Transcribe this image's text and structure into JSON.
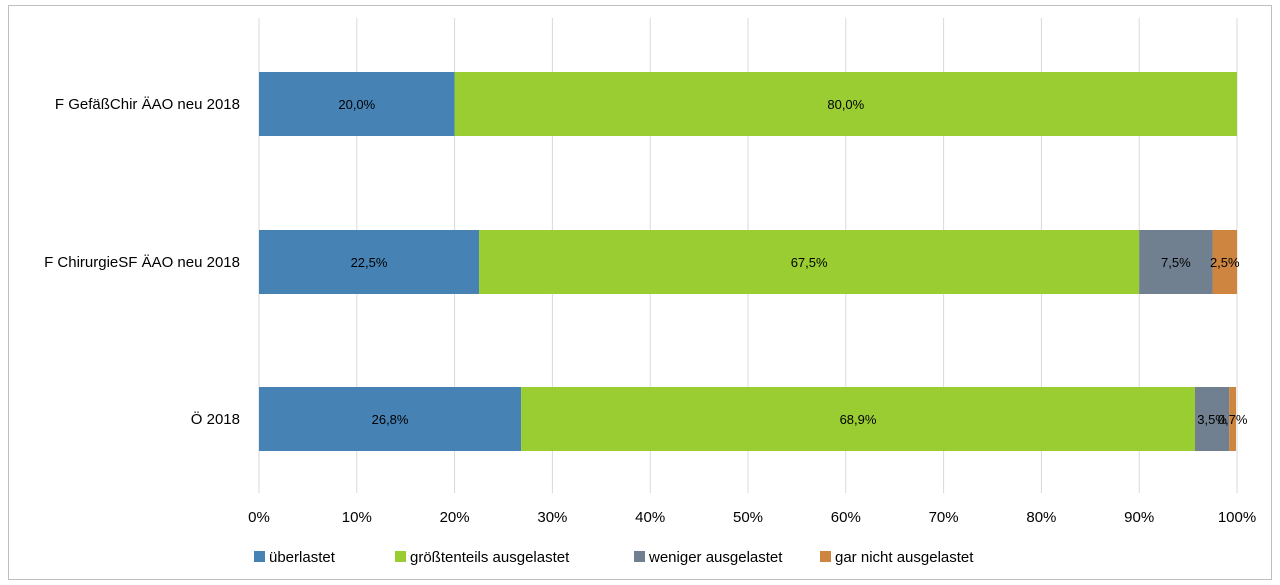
{
  "chart_data": {
    "type": "bar",
    "orientation": "horizontal",
    "stacked": "percent",
    "categories": [
      "F GefäßChir ÄAO neu 2018",
      "F ChirurgieSF ÄAO neu 2018",
      "Ö 2018"
    ],
    "series": [
      {
        "name": "überlastet",
        "color": "#4682b4",
        "values": [
          20.0,
          22.5,
          26.8
        ],
        "labels": [
          "20,0%",
          "22,5%",
          "26,8%"
        ]
      },
      {
        "name": "größtenteils ausgelastet",
        "color": "#9acd32",
        "values": [
          80.0,
          67.5,
          68.9
        ],
        "labels": [
          "80,0%",
          "67,5%",
          "68,9%"
        ]
      },
      {
        "name": "weniger ausgelastet",
        "color": "#708090",
        "values": [
          0.0,
          7.5,
          3.5
        ],
        "labels": [
          "",
          "7,5%",
          "3,5%"
        ]
      },
      {
        "name": "gar nicht ausgelastet",
        "color": "#cd853f",
        "values": [
          0.0,
          2.5,
          0.7
        ],
        "labels": [
          "",
          "2,5%",
          "0,7%"
        ]
      }
    ],
    "xlim": [
      0,
      100
    ],
    "x_ticks": [
      "0%",
      "10%",
      "20%",
      "30%",
      "40%",
      "50%",
      "60%",
      "70%",
      "80%",
      "90%",
      "100%"
    ],
    "grid": true,
    "legend_position": "bottom"
  }
}
